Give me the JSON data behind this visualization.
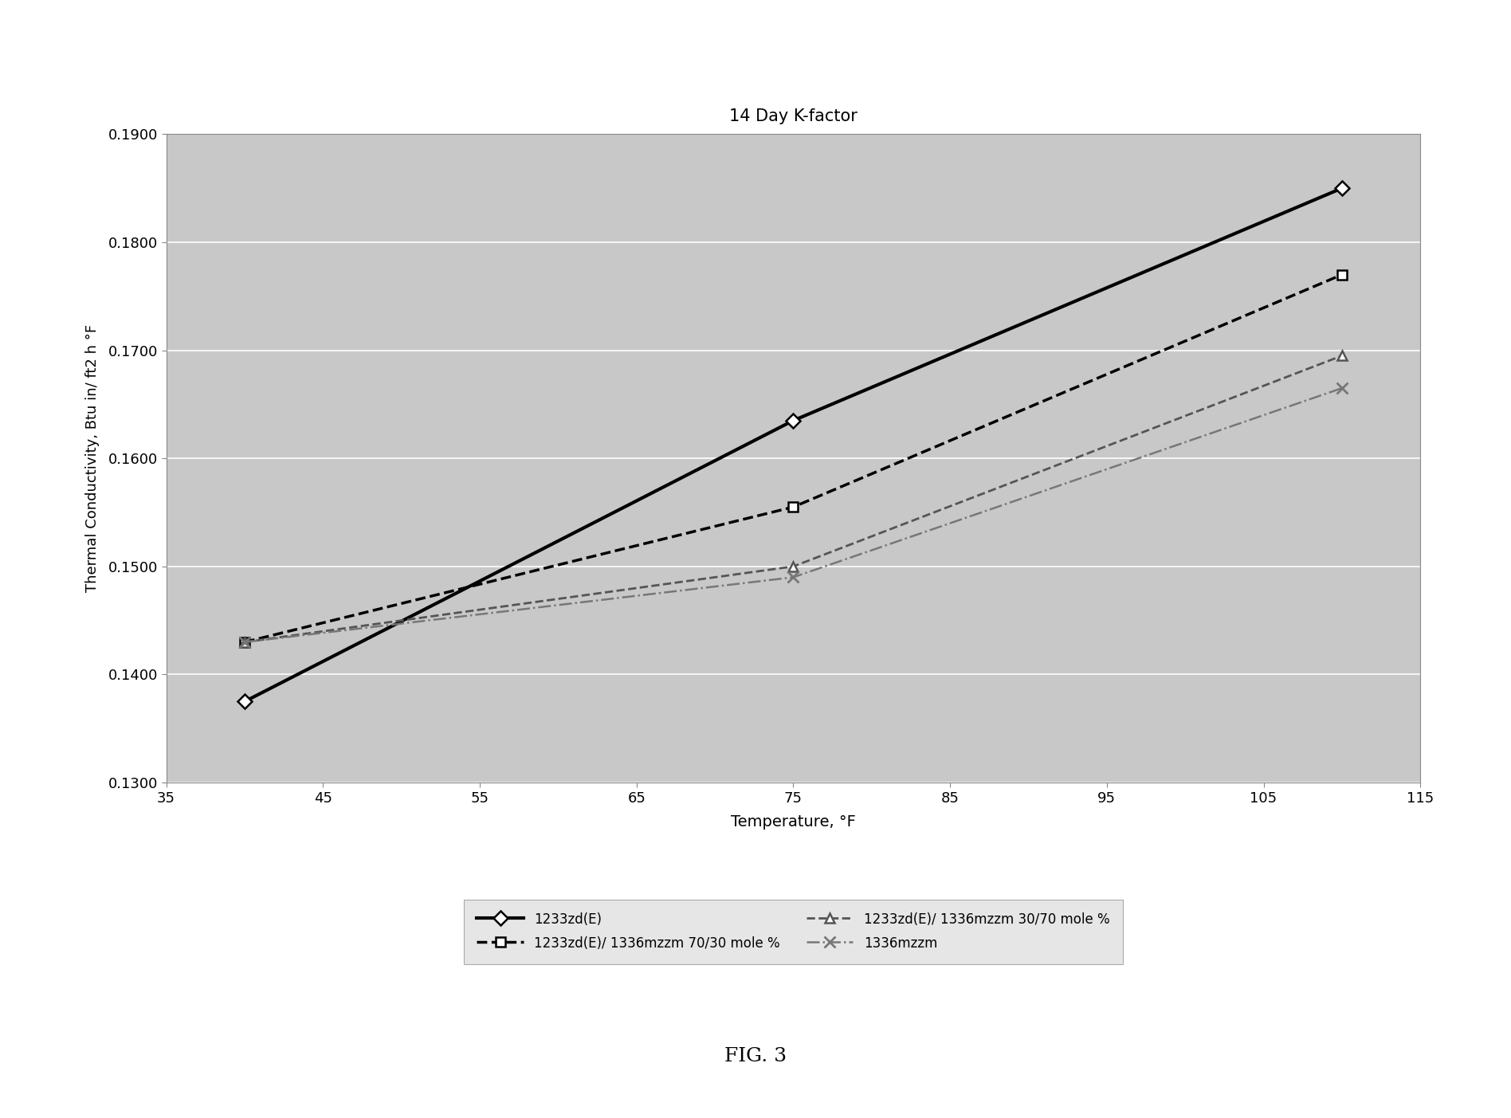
{
  "title": "14 Day K-factor",
  "xlabel": "Temperature, °F",
  "ylabel": "Thermal Conductivity, Btu in/ ft2 h °F",
  "xlim": [
    35,
    115
  ],
  "ylim": [
    0.13,
    0.19
  ],
  "xticks": [
    35,
    45,
    55,
    65,
    75,
    85,
    95,
    105,
    115
  ],
  "yticks": [
    0.13,
    0.14,
    0.15,
    0.16,
    0.17,
    0.18,
    0.19
  ],
  "fig_caption": "FIG. 3",
  "series": [
    {
      "label": "1233zd(E)",
      "x": [
        40,
        75,
        110
      ],
      "y": [
        0.1375,
        0.1635,
        0.185
      ],
      "color": "#000000",
      "linestyle": "-",
      "linewidth": 3.0,
      "marker": "D",
      "markersize": 9,
      "markerfacecolor": "white",
      "markeredgecolor": "#000000",
      "markeredgewidth": 1.8
    },
    {
      "label": "1233zd(E)/ 1336mzzm 70/30 mole %",
      "x": [
        40,
        75,
        110
      ],
      "y": [
        0.143,
        0.1555,
        0.177
      ],
      "color": "#000000",
      "linestyle": "--",
      "linewidth": 2.5,
      "marker": "s",
      "markersize": 9,
      "markerfacecolor": "white",
      "markeredgecolor": "#000000",
      "markeredgewidth": 1.8
    },
    {
      "label": "1233zd(E)/ 1336mzzm 30/70 mole %",
      "x": [
        40,
        75,
        110
      ],
      "y": [
        0.143,
        0.15,
        0.1695
      ],
      "color": "#555555",
      "linestyle": "--",
      "linewidth": 2.0,
      "marker": "^",
      "markersize": 9,
      "markerfacecolor": "white",
      "markeredgecolor": "#555555",
      "markeredgewidth": 1.8
    },
    {
      "label": "1336mzzm",
      "x": [
        40,
        75,
        110
      ],
      "y": [
        0.143,
        0.149,
        0.1665
      ],
      "color": "#777777",
      "linestyle": "-.",
      "linewidth": 1.8,
      "marker": "x",
      "markersize": 10,
      "markerfacecolor": "#777777",
      "markeredgecolor": "#777777",
      "markeredgewidth": 2.0
    }
  ],
  "plot_bg_color": "#c8c8c8",
  "fig_bg_color": "#ffffff",
  "legend_box_color": "#e0e0e0",
  "grid_color": "#ffffff",
  "spine_color": "#888888"
}
